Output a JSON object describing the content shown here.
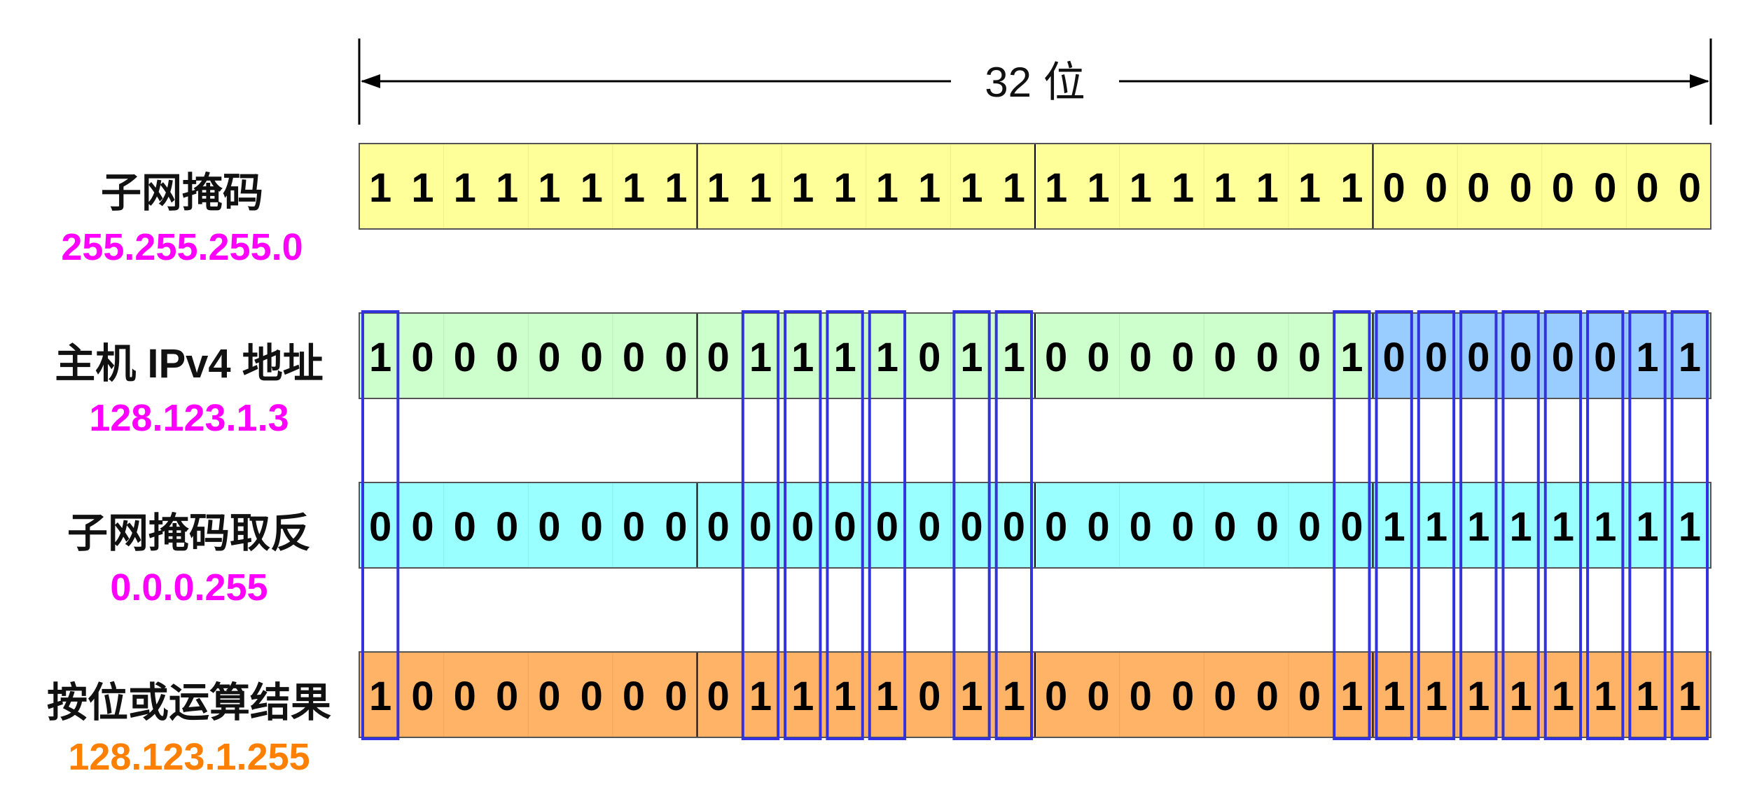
{
  "header": {
    "width_label": "32 位"
  },
  "rows": [
    {
      "id": "subnet-mask",
      "title": "子网掩码",
      "subtitle": "255.255.255.0",
      "subtitle_color": "#ff00ff",
      "fill": "#ffff99",
      "bits": [
        "1",
        "1",
        "1",
        "1",
        "1",
        "1",
        "1",
        "1",
        "1",
        "1",
        "1",
        "1",
        "1",
        "1",
        "1",
        "1",
        "1",
        "1",
        "1",
        "1",
        "1",
        "1",
        "1",
        "1",
        "0",
        "0",
        "0",
        "0",
        "0",
        "0",
        "0",
        "0"
      ]
    },
    {
      "id": "host-ipv4",
      "title": "主机 IPv4 地址",
      "subtitle": "128.123.1.3",
      "subtitle_color": "#ff00ff",
      "fill": "#ccffcc",
      "highlight_fill": "#99ccff",
      "highlight_bits": [
        24,
        25,
        26,
        27,
        28,
        29,
        30,
        31
      ],
      "bits": [
        "1",
        "0",
        "0",
        "0",
        "0",
        "0",
        "0",
        "0",
        "0",
        "1",
        "1",
        "1",
        "1",
        "0",
        "1",
        "1",
        "0",
        "0",
        "0",
        "0",
        "0",
        "0",
        "0",
        "1",
        "0",
        "0",
        "0",
        "0",
        "0",
        "0",
        "1",
        "1"
      ]
    },
    {
      "id": "inverted-mask",
      "title": "子网掩码取反",
      "subtitle": "0.0.0.255",
      "subtitle_color": "#ff00ff",
      "fill": "#99ffff",
      "bits": [
        "0",
        "0",
        "0",
        "0",
        "0",
        "0",
        "0",
        "0",
        "0",
        "0",
        "0",
        "0",
        "0",
        "0",
        "0",
        "0",
        "0",
        "0",
        "0",
        "0",
        "0",
        "0",
        "0",
        "0",
        "1",
        "1",
        "1",
        "1",
        "1",
        "1",
        "1",
        "1"
      ]
    },
    {
      "id": "or-result",
      "title": "按位或运算结果",
      "subtitle": "128.123.1.255",
      "subtitle_color": "#ff8000",
      "fill": "#ffb366",
      "bits": [
        "1",
        "0",
        "0",
        "0",
        "0",
        "0",
        "0",
        "0",
        "0",
        "1",
        "1",
        "1",
        "1",
        "0",
        "1",
        "1",
        "0",
        "0",
        "0",
        "0",
        "0",
        "0",
        "0",
        "1",
        "1",
        "1",
        "1",
        "1",
        "1",
        "1",
        "1",
        "1"
      ]
    }
  ],
  "colors": {
    "outline": "#3333dd",
    "line": "#000000"
  }
}
